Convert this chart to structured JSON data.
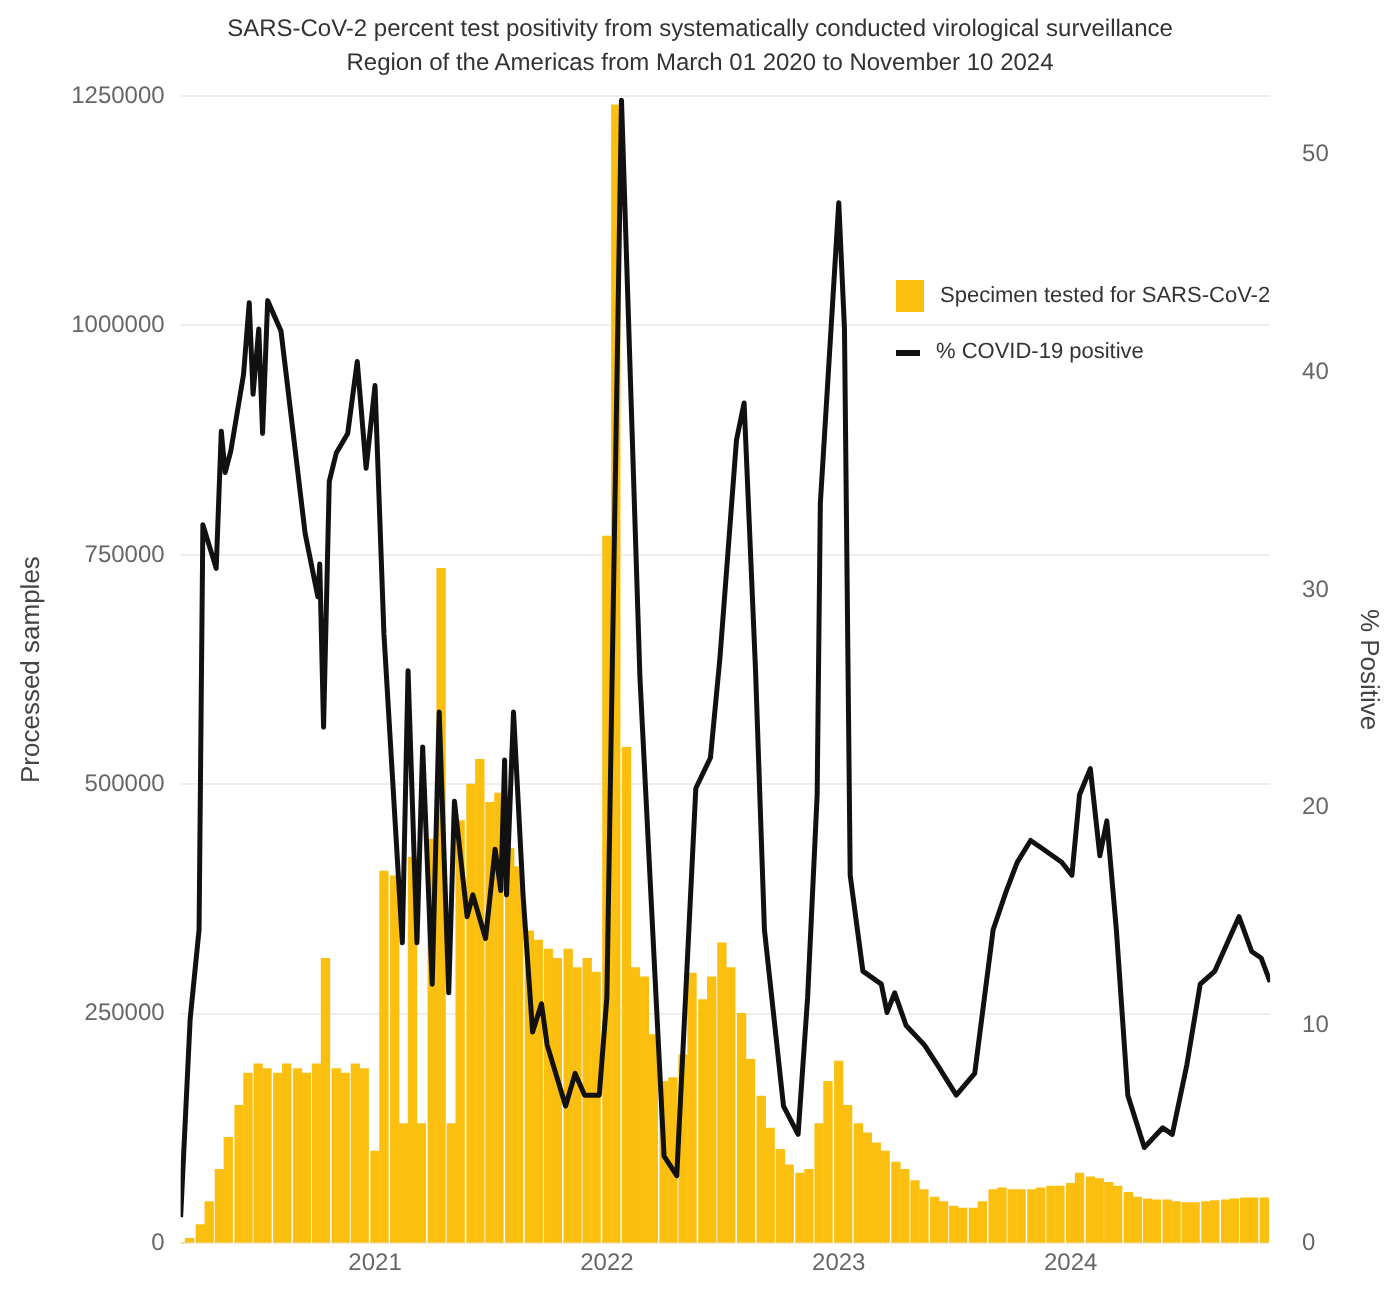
{
  "chart_data": {
    "type": "bar",
    "title": "SARS-CoV-2 percent test positivity from systematically conducted virological surveillance",
    "subtitle": "Region of the Americas from March 01 2020 to November 10 2024",
    "ylabel": "Processed samples",
    "y2label": "% Positive",
    "xlim": [
      "2020-03-01",
      "2024-11-10"
    ],
    "xticks": [
      "2021",
      "2022",
      "2023",
      "2024"
    ],
    "ylim": [
      0,
      1250000
    ],
    "yticks": [
      0,
      250000,
      500000,
      750000,
      1000000,
      1250000
    ],
    "y2lim": [
      0,
      52.7
    ],
    "y2ticks": [
      0,
      10,
      20,
      30,
      40,
      50
    ],
    "grid": "y",
    "legend": "top right",
    "series": [
      {
        "name": "Specimen tested for SARS-CoV-2",
        "color": "#fbbf10",
        "x": [
          "2020-03-01",
          "2020-03-15",
          "2020-04-01",
          "2020-04-15",
          "2020-05-01",
          "2020-05-15",
          "2020-06-01",
          "2020-06-15",
          "2020-07-01",
          "2020-07-15",
          "2020-08-01",
          "2020-08-15",
          "2020-09-01",
          "2020-09-15",
          "2020-10-01",
          "2020-10-15",
          "2020-11-01",
          "2020-11-15",
          "2020-12-01",
          "2020-12-15",
          "2021-01-01",
          "2021-01-15",
          "2021-02-01",
          "2021-02-15",
          "2021-03-01",
          "2021-03-15",
          "2021-04-01",
          "2021-04-15",
          "2021-05-01",
          "2021-05-15",
          "2021-06-01",
          "2021-06-15",
          "2021-07-01",
          "2021-07-15",
          "2021-08-01",
          "2021-08-15",
          "2021-09-01",
          "2021-09-15",
          "2021-10-01",
          "2021-10-15",
          "2021-11-01",
          "2021-11-15",
          "2021-12-01",
          "2021-12-15",
          "2022-01-01",
          "2022-01-15",
          "2022-02-01",
          "2022-02-15",
          "2022-03-01",
          "2022-03-15",
          "2022-04-01",
          "2022-04-15",
          "2022-05-01",
          "2022-05-15",
          "2022-06-01",
          "2022-06-15",
          "2022-07-01",
          "2022-07-15",
          "2022-08-01",
          "2022-08-15",
          "2022-09-01",
          "2022-09-15",
          "2022-10-01",
          "2022-10-15",
          "2022-11-01",
          "2022-11-15",
          "2022-12-01",
          "2022-12-15",
          "2023-01-01",
          "2023-01-15",
          "2023-02-01",
          "2023-02-15",
          "2023-03-01",
          "2023-03-15",
          "2023-04-01",
          "2023-04-15",
          "2023-05-01",
          "2023-05-15",
          "2023-06-01",
          "2023-06-15",
          "2023-07-01",
          "2023-07-15",
          "2023-08-01",
          "2023-08-15",
          "2023-09-01",
          "2023-09-15",
          "2023-10-01",
          "2023-10-15",
          "2023-11-01",
          "2023-11-15",
          "2023-12-01",
          "2023-12-15",
          "2024-01-01",
          "2024-01-15",
          "2024-02-01",
          "2024-02-15",
          "2024-03-01",
          "2024-03-15",
          "2024-04-01",
          "2024-04-15",
          "2024-05-01",
          "2024-05-15",
          "2024-06-01",
          "2024-06-15",
          "2024-07-01",
          "2024-07-15",
          "2024-08-01",
          "2024-08-15",
          "2024-09-01",
          "2024-09-15",
          "2024-10-01",
          "2024-10-15",
          "2024-11-01"
        ],
        "values": [
          0,
          5000,
          20000,
          45000,
          80000,
          115000,
          150000,
          185000,
          195000,
          190000,
          185000,
          195000,
          190000,
          185000,
          195000,
          310000,
          190000,
          185000,
          195000,
          190000,
          100000,
          405000,
          400000,
          130000,
          420000,
          130000,
          440000,
          735000,
          130000,
          460000,
          500000,
          527000,
          480000,
          490000,
          430000,
          410000,
          340000,
          330000,
          320000,
          310000,
          320000,
          300000,
          310000,
          295000,
          770000,
          1240000,
          540000,
          300000,
          290000,
          227000,
          176000,
          180000,
          205000,
          294000,
          265000,
          290000,
          327000,
          300000,
          250000,
          200000,
          160000,
          125000,
          102000,
          85000,
          76000,
          80000,
          130000,
          176000,
          198000,
          150000,
          130000,
          120000,
          109000,
          100000,
          88000,
          80000,
          68000,
          58000,
          50000,
          45000,
          40000,
          38000,
          38000,
          45000,
          58000,
          60000,
          58000,
          58000,
          58000,
          60000,
          62000,
          62000,
          65000,
          76000,
          72000,
          70000,
          66000,
          62000,
          55000,
          50000,
          48000,
          47000,
          47000,
          45000,
          44000,
          44000,
          45000,
          46000,
          47000,
          48000,
          49000,
          49000,
          49000
        ]
      },
      {
        "name": "% COVID-19 positive",
        "type": "line",
        "axis": "y2",
        "color": "#111111",
        "x": [
          "2020-03-01",
          "2020-03-16",
          "2020-03-30",
          "2020-04-05",
          "2020-04-26",
          "2020-05-04",
          "2020-05-10",
          "2020-05-19",
          "2020-06-08",
          "2020-06-17",
          "2020-06-23",
          "2020-07-02",
          "2020-07-08",
          "2020-07-16",
          "2020-08-06",
          "2020-09-13",
          "2020-10-03",
          "2020-10-06",
          "2020-10-12",
          "2020-10-21",
          "2020-11-01",
          "2020-11-19",
          "2020-12-04",
          "2020-12-18",
          "2021-01-01",
          "2021-01-15",
          "2021-02-13",
          "2021-02-22",
          "2021-03-08",
          "2021-03-17",
          "2021-04-01",
          "2021-04-12",
          "2021-04-27",
          "2021-05-06",
          "2021-05-26",
          "2021-06-04",
          "2021-06-24",
          "2021-07-09",
          "2021-07-18",
          "2021-07-24",
          "2021-07-27",
          "2021-08-07",
          "2021-08-22",
          "2021-09-06",
          "2021-09-20",
          "2021-09-29",
          "2021-10-28",
          "2021-11-12",
          "2021-11-27",
          "2021-12-20",
          "2022-01-01",
          "2022-01-24",
          "2022-02-22",
          "2022-04-01",
          "2022-04-21",
          "2022-05-21",
          "2022-06-13",
          "2022-06-28",
          "2022-07-24",
          "2022-08-05",
          "2022-08-23",
          "2022-09-06",
          "2022-10-06",
          "2022-10-29",
          "2022-11-13",
          "2022-11-28",
          "2022-12-03",
          "2023-01-01",
          "2023-01-10",
          "2023-01-19",
          "2023-02-08",
          "2023-03-09",
          "2023-03-18",
          "2023-03-30",
          "2023-04-17",
          "2023-05-16",
          "2023-06-05",
          "2023-07-05",
          "2023-08-03",
          "2023-09-01",
          "2023-09-22",
          "2023-10-09",
          "2023-10-30",
          "2023-11-19",
          "2023-12-18",
          "2024-01-03",
          "2024-01-15",
          "2024-02-01",
          "2024-02-16",
          "2024-02-27",
          "2024-03-13",
          "2024-03-31",
          "2024-04-26",
          "2024-05-25",
          "2024-06-09",
          "2024-07-02",
          "2024-07-23",
          "2024-08-15",
          "2024-09-22",
          "2024-10-12",
          "2024-10-27",
          "2024-11-10"
        ],
        "values": [
          1.2,
          10.3,
          14.4,
          33,
          31,
          37.3,
          35.4,
          36.4,
          39.9,
          43.2,
          39,
          42,
          37.2,
          43.3,
          41.9,
          32.6,
          29.7,
          31.2,
          23.7,
          35,
          36.3,
          37.2,
          40.5,
          35.6,
          39.4,
          28,
          13.8,
          26.3,
          13.8,
          22.8,
          11.9,
          24.4,
          11.5,
          20.3,
          15,
          16,
          14,
          18.1,
          16.2,
          22.2,
          16,
          24.4,
          16,
          9.7,
          11,
          9.1,
          6.3,
          7.8,
          6.8,
          6.8,
          11.3,
          52.5,
          26,
          4,
          3.1,
          20.9,
          22.3,
          26.9,
          36.9,
          38.6,
          26.3,
          14.4,
          6.3,
          5,
          11.3,
          20.6,
          34,
          47.8,
          42,
          16.9,
          12.5,
          11.9,
          10.6,
          11.5,
          10,
          9.1,
          8.2,
          6.8,
          7.8,
          14.4,
          16.2,
          17.5,
          18.5,
          18.1,
          17.5,
          16.9,
          20.6,
          21.8,
          17.8,
          19.4,
          14.4,
          6.8,
          4.4,
          5.3,
          5,
          8.2,
          11.9,
          12.5,
          15,
          13.4,
          13.1,
          12
        ]
      }
    ]
  }
}
